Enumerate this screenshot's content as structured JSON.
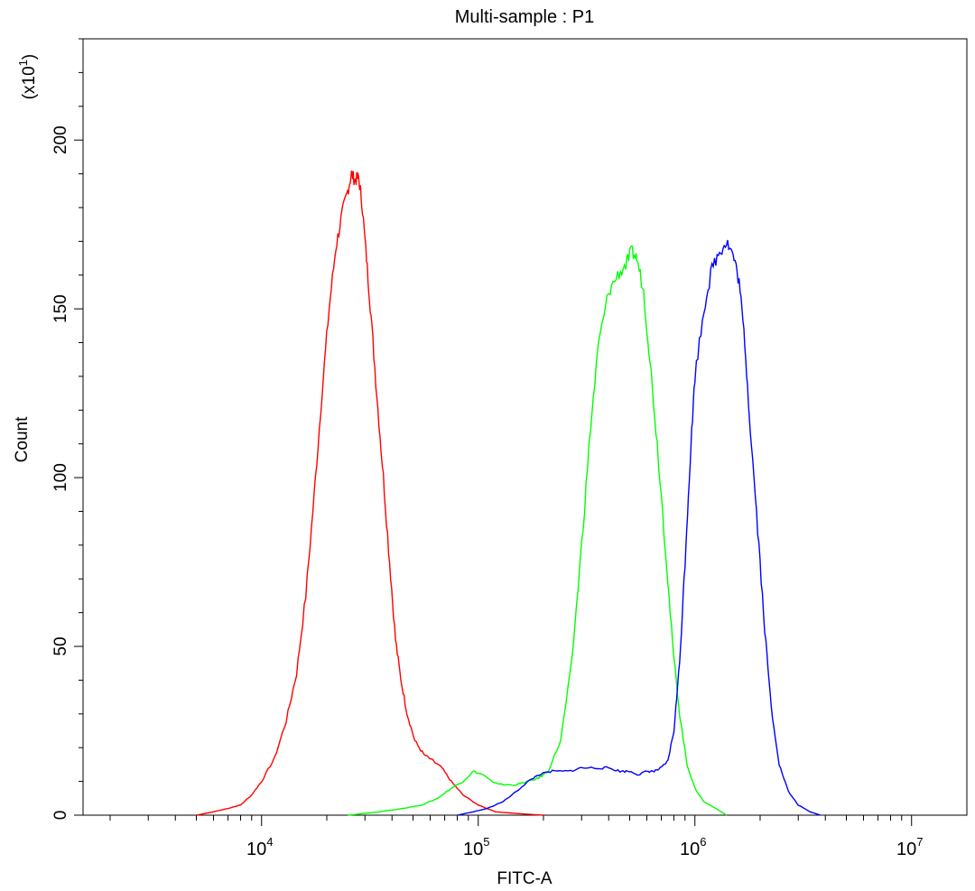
{
  "chart_data": {
    "type": "line",
    "title": "Multi-sample : P1",
    "xlabel": "FITC-A",
    "ylabel": "Count",
    "y_multiplier_label": "(x10",
    "y_multiplier_exp": "1",
    "y_multiplier_close": ")",
    "x_scale": "log",
    "xlim": [
      1500,
      18000000
    ],
    "ylim": [
      0,
      230
    ],
    "grid": false,
    "legend": "none",
    "y_ticks": [
      {
        "value": 0,
        "label": "0"
      },
      {
        "value": 50,
        "label": "50"
      },
      {
        "value": 100,
        "label": "100"
      },
      {
        "value": 150,
        "label": "150"
      },
      {
        "value": 200,
        "label": "200"
      }
    ],
    "x_major_ticks": [
      {
        "value": 10000,
        "base": "10",
        "exp": "4"
      },
      {
        "value": 100000,
        "base": "10",
        "exp": "5"
      },
      {
        "value": 1000000,
        "base": "10",
        "exp": "6"
      },
      {
        "value": 10000000,
        "base": "10",
        "exp": "7"
      }
    ],
    "series": [
      {
        "color": "#ff0000",
        "points": [
          [
            5000,
            0
          ],
          [
            6000,
            1
          ],
          [
            7000,
            2
          ],
          [
            8000,
            3
          ],
          [
            9000,
            6
          ],
          [
            10000,
            10
          ],
          [
            11500,
            17
          ],
          [
            13000,
            28
          ],
          [
            14500,
            42
          ],
          [
            16000,
            65
          ],
          [
            17500,
            95
          ],
          [
            19000,
            125
          ],
          [
            20500,
            150
          ],
          [
            22000,
            168
          ],
          [
            23500,
            178
          ],
          [
            25000,
            185
          ],
          [
            26000,
            190
          ],
          [
            27000,
            188
          ],
          [
            28000,
            189
          ],
          [
            29000,
            182
          ],
          [
            30500,
            165
          ],
          [
            32000,
            148
          ],
          [
            34000,
            125
          ],
          [
            36500,
            100
          ],
          [
            39000,
            75
          ],
          [
            41500,
            52
          ],
          [
            44000,
            40
          ],
          [
            47000,
            30
          ],
          [
            51000,
            22
          ],
          [
            56000,
            18
          ],
          [
            62000,
            16
          ],
          [
            68000,
            14
          ],
          [
            75000,
            10
          ],
          [
            85000,
            6
          ],
          [
            100000,
            3
          ],
          [
            120000,
            1
          ],
          [
            150000,
            0.5
          ],
          [
            200000,
            0
          ]
        ]
      },
      {
        "color": "#00ff00",
        "points": [
          [
            25000,
            0
          ],
          [
            35000,
            1
          ],
          [
            45000,
            2
          ],
          [
            55000,
            3
          ],
          [
            65000,
            5
          ],
          [
            75000,
            8
          ],
          [
            85000,
            10
          ],
          [
            95000,
            13
          ],
          [
            105000,
            12
          ],
          [
            115000,
            10
          ],
          [
            130000,
            9
          ],
          [
            150000,
            9
          ],
          [
            170000,
            10
          ],
          [
            190000,
            11
          ],
          [
            210000,
            13
          ],
          [
            240000,
            22
          ],
          [
            270000,
            45
          ],
          [
            300000,
            80
          ],
          [
            330000,
            115
          ],
          [
            360000,
            140
          ],
          [
            400000,
            155
          ],
          [
            440000,
            160
          ],
          [
            480000,
            163
          ],
          [
            510000,
            167
          ],
          [
            540000,
            165
          ],
          [
            580000,
            155
          ],
          [
            620000,
            135
          ],
          [
            670000,
            110
          ],
          [
            730000,
            80
          ],
          [
            790000,
            50
          ],
          [
            850000,
            30
          ],
          [
            920000,
            15
          ],
          [
            1000000,
            8
          ],
          [
            1100000,
            4
          ],
          [
            1250000,
            2
          ],
          [
            1400000,
            0
          ]
        ]
      },
      {
        "color": "#0000ff",
        "points": [
          [
            80000,
            0
          ],
          [
            95000,
            1
          ],
          [
            110000,
            2
          ],
          [
            130000,
            4
          ],
          [
            150000,
            7
          ],
          [
            170000,
            10
          ],
          [
            190000,
            12
          ],
          [
            220000,
            13
          ],
          [
            260000,
            13
          ],
          [
            300000,
            14
          ],
          [
            350000,
            14
          ],
          [
            400000,
            14
          ],
          [
            450000,
            13
          ],
          [
            500000,
            13
          ],
          [
            550000,
            12
          ],
          [
            600000,
            13
          ],
          [
            650000,
            13
          ],
          [
            700000,
            14
          ],
          [
            750000,
            16
          ],
          [
            800000,
            25
          ],
          [
            850000,
            45
          ],
          [
            900000,
            75
          ],
          [
            950000,
            105
          ],
          [
            1000000,
            130
          ],
          [
            1100000,
            150
          ],
          [
            1200000,
            162
          ],
          [
            1300000,
            167
          ],
          [
            1400000,
            170
          ],
          [
            1500000,
            166
          ],
          [
            1600000,
            158
          ],
          [
            1700000,
            140
          ],
          [
            1800000,
            115
          ],
          [
            1950000,
            85
          ],
          [
            2100000,
            55
          ],
          [
            2250000,
            32
          ],
          [
            2450000,
            15
          ],
          [
            2700000,
            7
          ],
          [
            3000000,
            3
          ],
          [
            3400000,
            1
          ],
          [
            3800000,
            0
          ]
        ]
      }
    ]
  }
}
